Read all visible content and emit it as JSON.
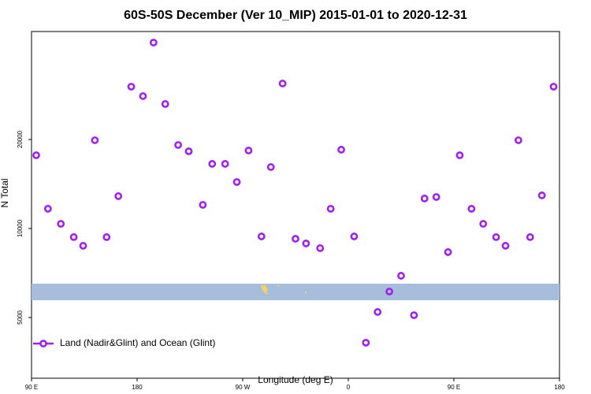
{
  "chart_data": {
    "type": "scatter",
    "title": "60S-50S December (Ver 10_MIP)   2015-01-01 to 2020-12-31",
    "x_label": "Longitude (deg E)",
    "y_label": "N Total",
    "log_y": true,
    "legend_position": "bottom-left",
    "xlim": [
      90,
      540
    ],
    "ylim": [
      3116,
      46350
    ],
    "xticks": [
      {
        "value": 90,
        "label": "90 E"
      },
      180,
      {
        "value": 270,
        "label": "90 W"
      },
      {
        "value": 360,
        "label": "0"
      },
      {
        "value": 450,
        "label": "90 E"
      },
      {
        "value": 540,
        "label": "180"
      }
    ],
    "yticks": [
      5000,
      10000,
      20000
    ],
    "series": [
      {
        "name": "Land (Nadir&Glint) and Ocean (Glint)",
        "color": "#a020f0",
        "x": [
          94,
          104,
          115,
          126,
          134,
          144,
          154,
          164,
          175,
          185,
          194,
          204,
          215,
          224,
          236,
          244,
          255,
          265,
          275,
          286,
          294,
          304,
          315,
          324,
          336,
          345,
          354,
          365,
          375,
          385,
          395,
          405,
          416,
          425,
          435,
          445,
          455,
          465,
          475,
          486,
          494,
          505,
          515,
          525,
          535
        ],
        "values": [
          17690,
          11660,
          10370,
          9350,
          8740,
          19880,
          9350,
          12860,
          30170,
          28030,
          42530,
          26360,
          19160,
          18240,
          12020,
          16540,
          16540,
          14360,
          18350,
          9400,
          16130,
          30920,
          9230,
          8900,
          8580,
          11660,
          18470,
          9400,
          4110,
          5220,
          6120,
          6920,
          5090,
          12630,
          12780,
          8320,
          17690,
          11660,
          10370,
          9350,
          8740,
          19880,
          9350,
          12940,
          30170
        ]
      }
    ]
  }
}
